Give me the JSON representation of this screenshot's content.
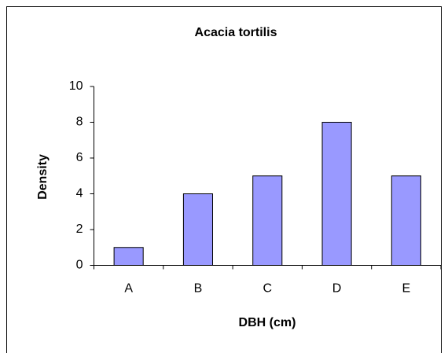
{
  "chart_data": {
    "type": "bar",
    "title": "Acacia tortilis",
    "x_label": "DBH (cm)",
    "y_label": "Density",
    "categories": [
      "A",
      "B",
      "C",
      "D",
      "E"
    ],
    "values": [
      1,
      4,
      5,
      8,
      5
    ],
    "color": "#9999ff",
    "ylim": [
      0,
      10
    ],
    "yticks": [
      0,
      2,
      4,
      6,
      8,
      10
    ],
    "grid": false
  }
}
